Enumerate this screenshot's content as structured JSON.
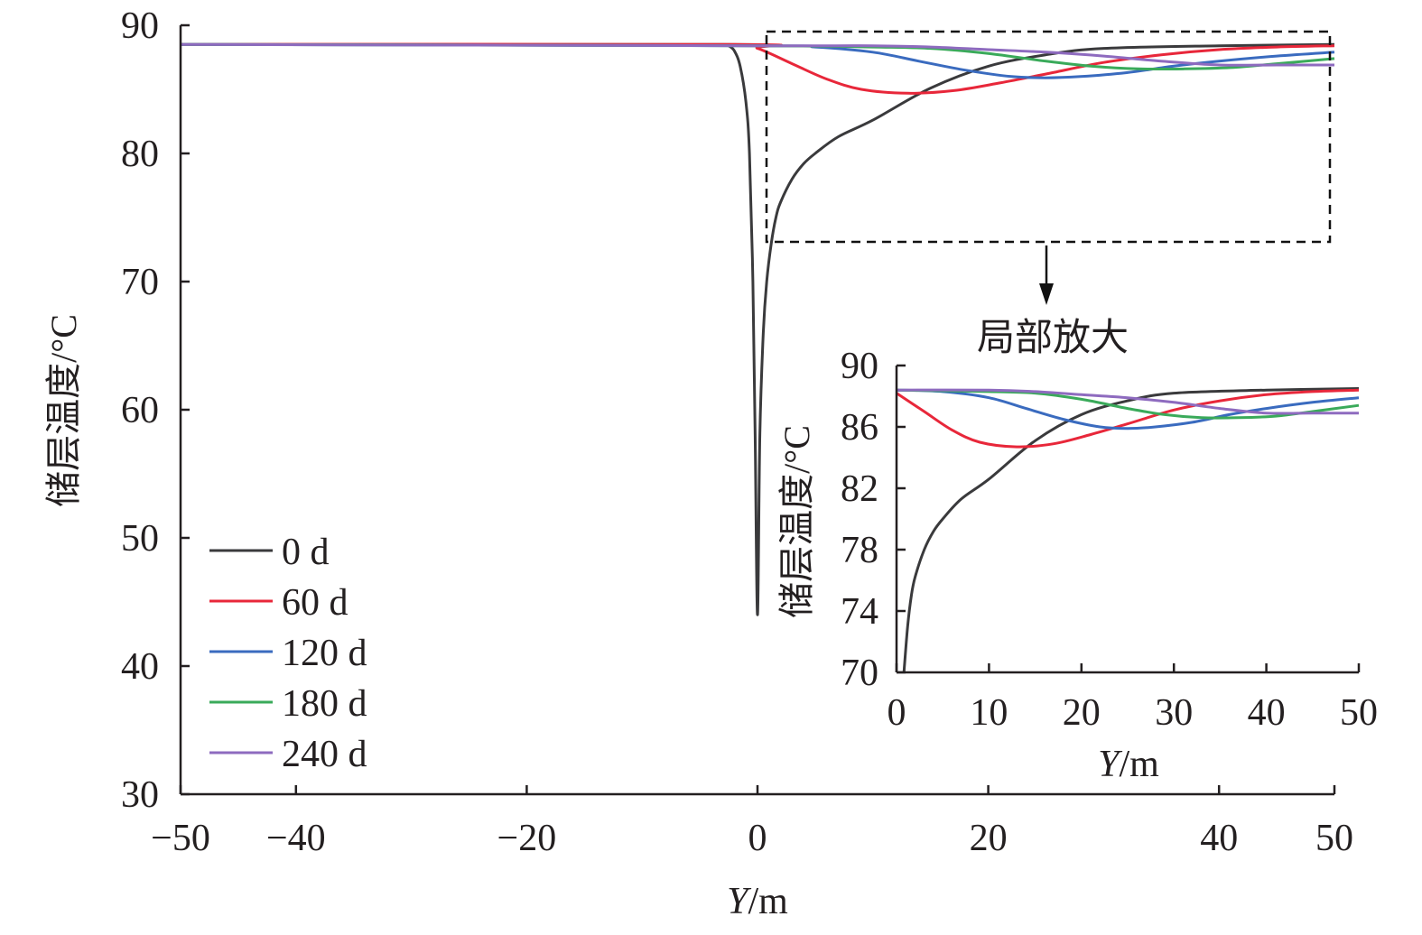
{
  "chart_data": {
    "type": "line",
    "title": "",
    "xlabel": "Y/m",
    "ylabel": "储层温度/°C",
    "xlim": [
      -50,
      50
    ],
    "ylim": [
      30,
      90
    ],
    "xticks": [
      -50,
      -40,
      -20,
      0,
      20,
      40,
      50
    ],
    "xtick_labels": [
      "−50",
      "−40",
      "−20",
      "0",
      "20",
      "40",
      "50"
    ],
    "yticks": [
      30,
      40,
      50,
      60,
      70,
      80,
      90
    ],
    "grid": false,
    "legend_position": "bottom-left",
    "series": [
      {
        "name": "0 d",
        "color": "#3a3a3c",
        "x": [
          -50,
          -3,
          -2.5,
          -2,
          -1.5,
          -1,
          -0.7,
          -0.4,
          -0.2,
          0,
          0.2,
          0.5,
          0.8,
          1.2,
          1.6,
          2,
          3,
          4,
          5,
          7,
          10,
          15,
          20,
          25,
          30,
          40,
          50
        ],
        "y": [
          88.5,
          88.5,
          88.4,
          88.0,
          86.8,
          84,
          80,
          70,
          58,
          44,
          58,
          66,
          70,
          73,
          75,
          76.2,
          78,
          79.2,
          80,
          81.3,
          82.6,
          85.1,
          86.8,
          87.7,
          88.2,
          88.4,
          88.5
        ]
      },
      {
        "name": "60 d",
        "color": "#e8273a",
        "x": [
          -50,
          -2,
          0,
          3,
          6,
          9,
          13,
          17,
          21,
          25,
          30,
          35,
          40,
          45,
          50
        ],
        "y": [
          88.5,
          88.5,
          88.2,
          87.0,
          85.8,
          85.0,
          84.7,
          84.9,
          85.5,
          86.2,
          87.1,
          87.7,
          88.1,
          88.3,
          88.4
        ]
      },
      {
        "name": "120 d",
        "color": "#3a6bbf",
        "x": [
          -50,
          0,
          5,
          10,
          14,
          18,
          22,
          25,
          28,
          32,
          36,
          40,
          45,
          50
        ],
        "y": [
          88.5,
          88.4,
          88.3,
          87.9,
          87.2,
          86.5,
          86.0,
          85.9,
          86.0,
          86.3,
          86.8,
          87.2,
          87.6,
          87.9
        ]
      },
      {
        "name": "180 d",
        "color": "#3aaa5a",
        "x": [
          -50,
          0,
          10,
          15,
          20,
          25,
          29,
          33,
          37,
          41,
          45,
          50
        ],
        "y": [
          88.5,
          88.4,
          88.3,
          88.2,
          87.8,
          87.2,
          86.8,
          86.6,
          86.6,
          86.7,
          87.0,
          87.4
        ]
      },
      {
        "name": "240 d",
        "color": "#8e6bbf",
        "x": [
          -50,
          0,
          10,
          15,
          20,
          25,
          30,
          35,
          40,
          45,
          50
        ],
        "y": [
          88.5,
          88.4,
          88.4,
          88.3,
          88.1,
          87.9,
          87.6,
          87.2,
          86.9,
          86.9,
          86.9
        ]
      }
    ],
    "inset": {
      "title": "局部放大",
      "xlabel": "Y/m",
      "ylabel": "储层温度/°C",
      "xlim": [
        0,
        50
      ],
      "ylim": [
        70,
        90
      ],
      "xticks": [
        0,
        10,
        20,
        30,
        40,
        50
      ],
      "yticks": [
        70,
        74,
        78,
        82,
        86,
        90
      ],
      "zoom_region": {
        "x": [
          0.8,
          49.5
        ],
        "y": [
          73,
          89.5
        ]
      }
    }
  }
}
